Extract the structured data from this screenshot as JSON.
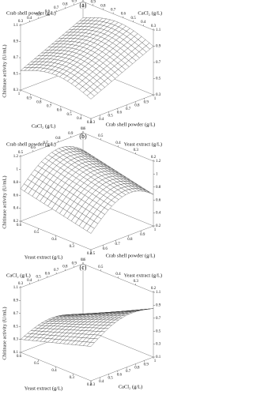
{
  "chart_data": [
    {
      "type": "surface",
      "title": "(a)",
      "zlabel": "Chitinase activity (U/mL)",
      "x_label": "Crab shell powder (g/L)",
      "y_label": "CaCl₂ (g/L)",
      "xlim": [
        0.3,
        1
      ],
      "xticks": [
        0.3,
        0.4,
        0.5,
        0.6,
        0.7,
        0.8,
        0.9,
        1
      ],
      "ylim": [
        0.3,
        1
      ],
      "yticks": [
        0.3,
        0.4,
        0.5,
        0.6,
        0.7,
        0.8,
        0.9,
        1
      ],
      "zlim": [
        0.3,
        1.1
      ],
      "zticks": [
        0.3,
        0.5,
        0.7,
        0.9,
        1.1
      ]
    },
    {
      "type": "surface",
      "title": "(b)",
      "zlabel": "Chitinase activity (U/mL)",
      "x_label": "Crab shell powder (g/L)",
      "y_label": "Yeast extract (g/L)",
      "xlim": [
        0.5,
        1
      ],
      "xticks": [
        0.5,
        0.6,
        0.7,
        0.8,
        0.9,
        1
      ],
      "ylim": [
        0.2,
        0.6
      ],
      "yticks": [
        0.2,
        0.3,
        0.4,
        0.5,
        0.6
      ],
      "zlim": [
        0.2,
        1.2
      ],
      "zticks": [
        0.2,
        0.4,
        0.6,
        0.8,
        1,
        1.2
      ]
    },
    {
      "type": "surface",
      "title": "(c)",
      "zlabel": "Chitinase activity (U/mL)",
      "x_label": "CaCl₂ (g/L)",
      "y_label": "Yeast extract (g/L)",
      "xlim": [
        0.3,
        1
      ],
      "xticks": [
        0.3,
        0.4,
        0.5,
        0.6,
        0.7,
        0.8,
        0.9,
        1
      ],
      "ylim": [
        0.2,
        0.6
      ],
      "yticks": [
        0.2,
        0.3,
        0.4,
        0.5,
        0.6
      ],
      "zlim": [
        0.1,
        1.1
      ],
      "zticks": [
        0.1,
        0.3,
        0.5,
        0.7,
        0.9,
        1.1
      ]
    }
  ]
}
